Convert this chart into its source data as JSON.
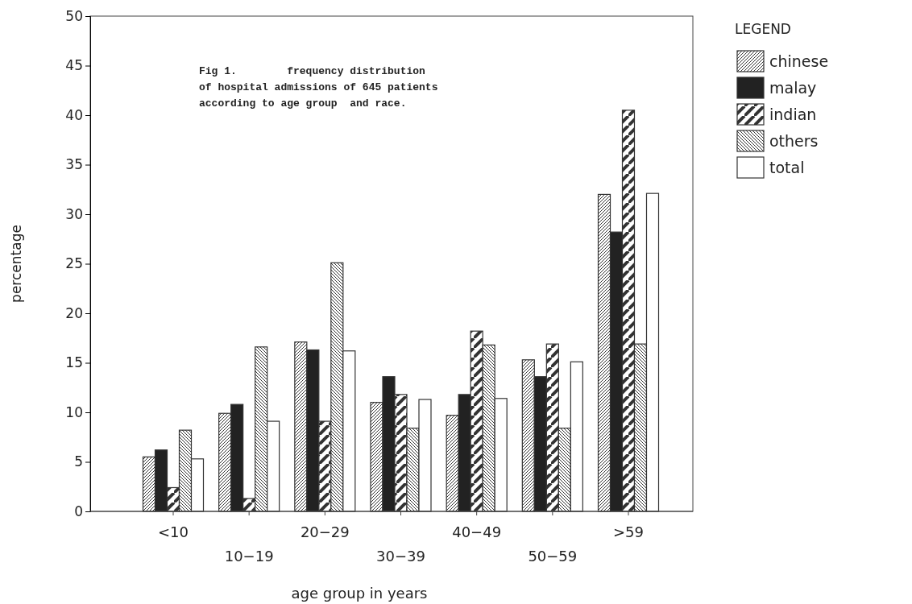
{
  "chart_data": {
    "type": "bar",
    "title": "Fig 1.        frequency distribution of hospital admissions of 645 patients according to age group  and race.",
    "xlabel": "age group in years",
    "ylabel": "percentage",
    "legend_title": "LEGEND",
    "legend": "top right",
    "categories": [
      "<10",
      "10−19",
      "20−29",
      "30−39",
      "40−49",
      "50−59",
      ">59"
    ],
    "ylim": [
      0,
      50
    ],
    "yticks": [
      0,
      5,
      10,
      15,
      20,
      25,
      30,
      35,
      40,
      45,
      50
    ],
    "series": [
      {
        "name": "chinese",
        "color": "#333333",
        "values": [
          5.5,
          9.9,
          17.1,
          11.0,
          9.7,
          15.3,
          32.0
        ]
      },
      {
        "name": "malay",
        "color": "#222222",
        "values": [
          6.2,
          10.8,
          16.3,
          13.6,
          11.8,
          13.6,
          28.2
        ]
      },
      {
        "name": "indian",
        "color": "#333333",
        "values": [
          2.4,
          1.3,
          9.1,
          11.8,
          18.2,
          16.9,
          40.5
        ]
      },
      {
        "name": "others",
        "color": "#333333",
        "values": [
          8.2,
          16.6,
          25.1,
          8.4,
          16.8,
          8.4,
          16.9
        ]
      },
      {
        "name": "total",
        "color": "#ffffff",
        "values": [
          5.3,
          9.1,
          16.2,
          11.3,
          11.4,
          15.1,
          32.1
        ]
      }
    ]
  }
}
